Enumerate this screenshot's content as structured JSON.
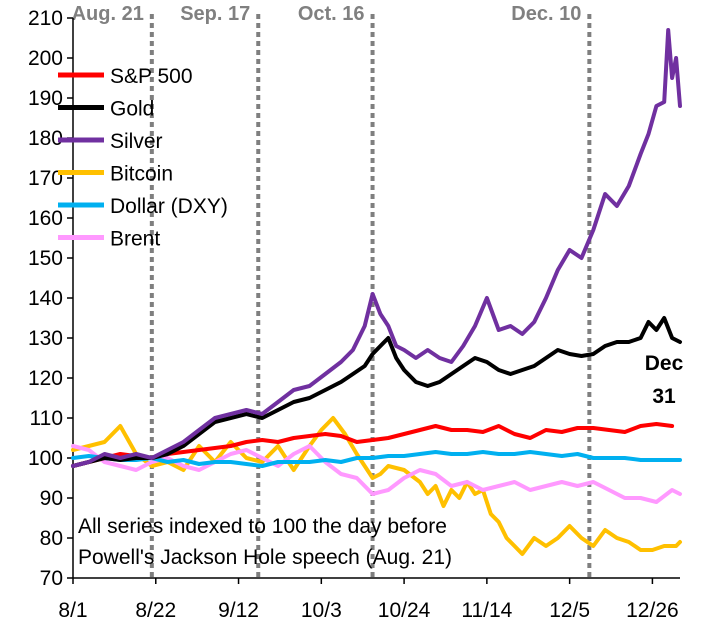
{
  "chart_data": {
    "type": "line",
    "title": "",
    "xlabel": "",
    "ylabel": "",
    "ylim": [
      70,
      210
    ],
    "y_ticks": [
      70,
      80,
      90,
      100,
      110,
      120,
      130,
      140,
      150,
      160,
      170,
      180,
      190,
      200,
      210
    ],
    "x_tick_labels": [
      "8/1",
      "8/22",
      "9/12",
      "10/3",
      "10/24",
      "11/14",
      "12/5",
      "12/26"
    ],
    "x_tick_days": [
      1,
      22,
      43,
      64,
      85,
      106,
      127,
      148
    ],
    "xlim_days": [
      1,
      155
    ],
    "grid": false,
    "legend_position": "top-left",
    "events": [
      {
        "label": "Aug. 21",
        "day": 21
      },
      {
        "label": "Sep. 17",
        "day": 48
      },
      {
        "label": "Oct. 16",
        "day": 77
      },
      {
        "label": "Dec. 10",
        "day": 132
      }
    ],
    "annotation": [
      "All series indexed to 100 the day before",
      "Powell's Jackson Hole speech (Aug. 21)"
    ],
    "end_label": [
      "Dec",
      "31"
    ],
    "series": [
      {
        "name": "S&P 500",
        "color": "#ff0000",
        "x": [
          1,
          5,
          9,
          13,
          17,
          21,
          25,
          29,
          33,
          37,
          41,
          45,
          49,
          53,
          57,
          61,
          65,
          69,
          73,
          77,
          81,
          85,
          89,
          93,
          97,
          101,
          105,
          109,
          113,
          117,
          121,
          125,
          129,
          133,
          137,
          141,
          145,
          149,
          153
        ],
        "values": [
          98,
          99,
          100,
          101,
          100.5,
          100,
          101,
          101.5,
          102,
          102.5,
          103,
          104,
          104.5,
          104,
          105,
          105.5,
          106,
          105.5,
          104,
          104.5,
          105,
          106,
          107,
          108,
          107,
          107,
          106.5,
          108,
          106,
          105,
          107,
          106.5,
          107.5,
          107.5,
          107,
          106.5,
          108,
          108.5,
          108
        ]
      },
      {
        "name": "Gold",
        "color": "#000000",
        "x": [
          1,
          5,
          9,
          13,
          17,
          21,
          25,
          29,
          33,
          37,
          41,
          45,
          49,
          53,
          57,
          61,
          65,
          69,
          72,
          75,
          77,
          79,
          81,
          83,
          85,
          88,
          91,
          94,
          97,
          100,
          103,
          106,
          109,
          112,
          115,
          118,
          121,
          124,
          127,
          130,
          133,
          136,
          139,
          142,
          145,
          147,
          149,
          151,
          153,
          155
        ],
        "values": [
          98,
          99,
          100,
          99.5,
          100,
          100,
          101,
          103,
          106,
          109,
          110,
          111,
          110,
          112,
          114,
          115,
          117,
          119,
          121,
          123,
          126,
          128,
          130,
          125,
          122,
          119,
          118,
          119,
          121,
          123,
          125,
          124,
          122,
          121,
          122,
          123,
          125,
          127,
          126,
          125.5,
          126,
          128,
          129,
          129,
          130,
          134,
          132,
          135,
          130,
          129
        ]
      },
      {
        "name": "Silver",
        "color": "#7030a0",
        "x": [
          1,
          5,
          9,
          13,
          17,
          21,
          25,
          29,
          33,
          37,
          41,
          45,
          49,
          53,
          57,
          61,
          65,
          69,
          72,
          75,
          77,
          79,
          81,
          83,
          85,
          88,
          91,
          94,
          97,
          100,
          103,
          106,
          109,
          112,
          115,
          118,
          121,
          124,
          127,
          130,
          133,
          136,
          139,
          142,
          145,
          147,
          149,
          151,
          152,
          153,
          154,
          155
        ],
        "values": [
          98,
          99,
          101,
          100,
          101,
          100,
          102,
          104,
          107,
          110,
          111,
          112,
          111,
          114,
          117,
          118,
          121,
          124,
          127,
          133,
          141,
          136,
          133,
          128,
          127,
          125,
          127,
          125,
          124,
          128,
          133,
          140,
          132,
          133,
          131,
          134,
          140,
          147,
          152,
          150,
          157,
          166,
          163,
          168,
          176,
          181,
          188,
          189,
          207,
          195,
          200,
          188
        ]
      },
      {
        "name": "Bitcoin",
        "color": "#ffc000",
        "x": [
          1,
          5,
          9,
          13,
          17,
          21,
          25,
          29,
          33,
          37,
          41,
          45,
          49,
          53,
          57,
          61,
          64,
          67,
          70,
          73,
          75,
          77,
          79,
          81,
          85,
          89,
          91,
          93,
          95,
          97,
          99,
          101,
          103,
          105,
          107,
          109,
          111,
          113,
          115,
          118,
          121,
          124,
          127,
          130,
          133,
          136,
          139,
          142,
          145,
          148,
          151,
          154,
          155
        ],
        "values": [
          102,
          103,
          104,
          108,
          101,
          98,
          99,
          97,
          103,
          99,
          104,
          100,
          99,
          103,
          97,
          103,
          107,
          110,
          106,
          101,
          98,
          95,
          96,
          98,
          97,
          94,
          91,
          93,
          88,
          92,
          90,
          94,
          91,
          92,
          86,
          84,
          80,
          78,
          76,
          80,
          78,
          80,
          83,
          80,
          78,
          82,
          80,
          79,
          77,
          77,
          78,
          78,
          79
        ]
      },
      {
        "name": "Dollar (DXY)",
        "color": "#00b0f0",
        "x": [
          1,
          5,
          9,
          13,
          17,
          21,
          25,
          29,
          33,
          37,
          41,
          45,
          49,
          53,
          57,
          61,
          65,
          69,
          73,
          77,
          81,
          85,
          89,
          93,
          97,
          101,
          105,
          109,
          113,
          117,
          121,
          125,
          129,
          133,
          137,
          141,
          145,
          149,
          153,
          155
        ],
        "values": [
          100,
          100.5,
          100,
          99.5,
          99.5,
          100,
          99,
          99.5,
          98.5,
          99,
          99,
          98.5,
          98,
          99,
          99,
          99,
          99.5,
          99,
          100,
          100,
          100.5,
          100.5,
          101,
          101.5,
          101,
          101,
          101.5,
          101,
          101,
          101.5,
          101,
          100.5,
          101,
          100,
          100,
          100,
          99.5,
          99.5,
          99.5,
          99.5
        ]
      },
      {
        "name": "Brent",
        "color": "#ff99ff",
        "x": [
          1,
          5,
          9,
          13,
          17,
          21,
          25,
          29,
          33,
          37,
          41,
          45,
          49,
          53,
          57,
          61,
          65,
          69,
          73,
          77,
          81,
          85,
          89,
          93,
          97,
          101,
          105,
          109,
          113,
          117,
          121,
          125,
          129,
          133,
          137,
          141,
          145,
          149,
          153,
          155
        ],
        "values": [
          103,
          102,
          99,
          98,
          97,
          99,
          100,
          98,
          97,
          99,
          101,
          102,
          100,
          98,
          101,
          103,
          99,
          96,
          95,
          91,
          92,
          95,
          97,
          96,
          93,
          94,
          92,
          93,
          94,
          92,
          93,
          94,
          93,
          94,
          92,
          90,
          90,
          89,
          92,
          91
        ]
      }
    ]
  }
}
